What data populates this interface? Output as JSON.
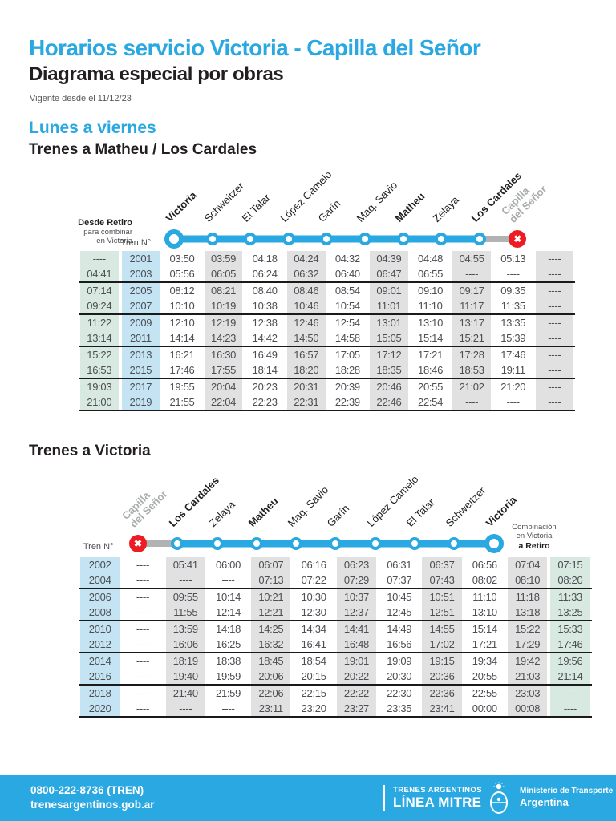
{
  "header": {
    "title": "Horarios servicio Victoria - Capilla del Señor",
    "subtitle": "Diagrama especial por obras",
    "validity": "Vigente desde el 11/12/23"
  },
  "colors": {
    "accent_blue": "#29a8e1",
    "heading_dark": "#231f20",
    "cell_gray": "#e1e1e1",
    "cell_green": "#d8e9e2",
    "cell_blue": "#c5e4f3",
    "closed_red": "#ed1c24",
    "closed_gray": "#a9abad"
  },
  "icons": {
    "closed_x": "✖"
  },
  "section_matheu": {
    "day_label": "Lunes a viernes",
    "heading": "Trenes a Matheu / Los Cardales",
    "origin_note": [
      "Desde Retiro",
      "para combinar",
      "en Victoria"
    ],
    "train_col_label": "Tren N°",
    "stations": [
      {
        "name": "Victoria",
        "bold": true,
        "terminal": true
      },
      {
        "name": "Schweitzer"
      },
      {
        "name": "El Talar"
      },
      {
        "name": "López Camelo"
      },
      {
        "name": "Garín"
      },
      {
        "name": "Maq. Savio"
      },
      {
        "name": "Matheu",
        "bold": true
      },
      {
        "name": "Zelaya"
      },
      {
        "name": "Los Cardales",
        "bold": true
      },
      {
        "name": "Capilla del Señor",
        "closed": true
      }
    ],
    "rows": [
      {
        "retiro": "----",
        "train": "2001",
        "times": [
          "03:50",
          "03:59",
          "04:18",
          "04:24",
          "04:32",
          "04:39",
          "04:48",
          "04:55",
          "05:13",
          "----"
        ]
      },
      {
        "retiro": "04:41",
        "train": "2003",
        "times": [
          "05:56",
          "06:05",
          "06:24",
          "06:32",
          "06:40",
          "06:47",
          "06:55",
          "----",
          "----",
          "----"
        ]
      },
      {
        "retiro": "07:14",
        "train": "2005",
        "times": [
          "08:12",
          "08:21",
          "08:40",
          "08:46",
          "08:54",
          "09:01",
          "09:10",
          "09:17",
          "09:35",
          "----"
        ]
      },
      {
        "retiro": "09:24",
        "train": "2007",
        "times": [
          "10:10",
          "10:19",
          "10:38",
          "10:46",
          "10:54",
          "11:01",
          "11:10",
          "11:17",
          "11:35",
          "----"
        ]
      },
      {
        "retiro": "11:22",
        "train": "2009",
        "times": [
          "12:10",
          "12:19",
          "12:38",
          "12:46",
          "12:54",
          "13:01",
          "13:10",
          "13:17",
          "13:35",
          "----"
        ]
      },
      {
        "retiro": "13:14",
        "train": "2011",
        "times": [
          "14:14",
          "14:23",
          "14:42",
          "14:50",
          "14:58",
          "15:05",
          "15:14",
          "15:21",
          "15:39",
          "----"
        ]
      },
      {
        "retiro": "15:22",
        "train": "2013",
        "times": [
          "16:21",
          "16:30",
          "16:49",
          "16:57",
          "17:05",
          "17:12",
          "17:21",
          "17:28",
          "17:46",
          "----"
        ]
      },
      {
        "retiro": "16:53",
        "train": "2015",
        "times": [
          "17:46",
          "17:55",
          "18:14",
          "18:20",
          "18:28",
          "18:35",
          "18:46",
          "18:53",
          "19:11",
          "----"
        ]
      },
      {
        "retiro": "19:03",
        "train": "2017",
        "times": [
          "19:55",
          "20:04",
          "20:23",
          "20:31",
          "20:39",
          "20:46",
          "20:55",
          "21:02",
          "21:20",
          "----"
        ]
      },
      {
        "retiro": "21:00",
        "train": "2019",
        "times": [
          "21:55",
          "22:04",
          "22:23",
          "22:31",
          "22:39",
          "22:46",
          "22:54",
          "----",
          "----",
          "----"
        ]
      }
    ]
  },
  "section_victoria": {
    "heading": "Trenes a Victoria",
    "train_col_label": "Tren N°",
    "combination_note": [
      "Combinación",
      "en Victoria",
      "a Retiro"
    ],
    "stations": [
      {
        "name": "Capilla del Señor",
        "closed": true
      },
      {
        "name": "Los Cardales",
        "bold": true
      },
      {
        "name": "Zelaya"
      },
      {
        "name": "Matheu",
        "bold": true
      },
      {
        "name": "Maq. Savio"
      },
      {
        "name": "Garín"
      },
      {
        "name": "López Camelo"
      },
      {
        "name": "El Talar"
      },
      {
        "name": "Schweitzer"
      },
      {
        "name": "Victoria",
        "bold": true,
        "terminal": true
      }
    ],
    "rows": [
      {
        "train": "2002",
        "times": [
          "----",
          "05:41",
          "06:00",
          "06:07",
          "06:16",
          "06:23",
          "06:31",
          "06:37",
          "06:56",
          "07:04"
        ],
        "retiro": "07:15"
      },
      {
        "train": "2004",
        "times": [
          "----",
          "----",
          "----",
          "07:13",
          "07:22",
          "07:29",
          "07:37",
          "07:43",
          "08:02",
          "08:10"
        ],
        "retiro": "08:20"
      },
      {
        "train": "2006",
        "times": [
          "----",
          "09:55",
          "10:14",
          "10:21",
          "10:30",
          "10:37",
          "10:45",
          "10:51",
          "11:10",
          "11:18"
        ],
        "retiro": "11:33"
      },
      {
        "train": "2008",
        "times": [
          "----",
          "11:55",
          "12:14",
          "12:21",
          "12:30",
          "12:37",
          "12:45",
          "12:51",
          "13:10",
          "13:18"
        ],
        "retiro": "13:25"
      },
      {
        "train": "2010",
        "times": [
          "----",
          "13:59",
          "14:18",
          "14:25",
          "14:34",
          "14:41",
          "14:49",
          "14:55",
          "15:14",
          "15:22"
        ],
        "retiro": "15:33"
      },
      {
        "train": "2012",
        "times": [
          "----",
          "16:06",
          "16:25",
          "16:32",
          "16:41",
          "16:48",
          "16:56",
          "17:02",
          "17:21",
          "17:29"
        ],
        "retiro": "17:46"
      },
      {
        "train": "2014",
        "times": [
          "----",
          "18:19",
          "18:38",
          "18:45",
          "18:54",
          "19:01",
          "19:09",
          "19:15",
          "19:34",
          "19:42"
        ],
        "retiro": "19:56"
      },
      {
        "train": "2016",
        "times": [
          "----",
          "19:40",
          "19:59",
          "20:06",
          "20:15",
          "20:22",
          "20:30",
          "20:36",
          "20:55",
          "21:03"
        ],
        "retiro": "21:14"
      },
      {
        "train": "2018",
        "times": [
          "----",
          "21:40",
          "21:59",
          "22:06",
          "22:15",
          "22:22",
          "22:30",
          "22:36",
          "22:55",
          "23:03"
        ],
        "retiro": "----"
      },
      {
        "train": "2020",
        "times": [
          "----",
          "----",
          "----",
          "23:11",
          "23:20",
          "23:27",
          "23:35",
          "23:41",
          "00:00",
          "00:08"
        ],
        "retiro": "----"
      }
    ]
  },
  "footer": {
    "phone": "0800-222-8736 (TREN)",
    "website": "trenesargentinos.gob.ar",
    "brand_small": "TRENES ARGENTINOS",
    "brand_large": "LÍNEA MITRE",
    "ministry": "Ministerio de Transporte",
    "country": "Argentina"
  }
}
